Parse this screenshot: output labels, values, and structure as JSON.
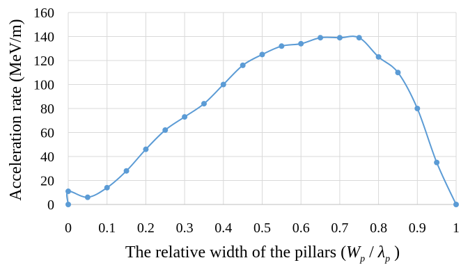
{
  "chart_data": {
    "type": "scatter",
    "ylabel": "Acceleration rate (MeV/m)",
    "xlabel": {
      "prefix": "The relative width of the pillars (",
      "w": "W",
      "w_sub": "p",
      "slash": " / ",
      "lambda": "λ",
      "lambda_sub": "p",
      "suffix": " )"
    },
    "xlim": [
      0,
      1
    ],
    "ylim": [
      0,
      160
    ],
    "xticks": [
      0,
      0.1,
      0.2,
      0.3,
      0.4,
      0.5,
      0.6,
      0.7,
      0.8,
      0.9,
      1
    ],
    "xtick_labels": [
      "0",
      "0.1",
      "0.2",
      "0.3",
      "0.4",
      "0.5",
      "0.6",
      "0.7",
      "0.8",
      "0.9",
      "1"
    ],
    "yticks": [
      0,
      20,
      40,
      60,
      80,
      100,
      120,
      140,
      160
    ],
    "ytick_labels": [
      "0",
      "20",
      "40",
      "60",
      "80",
      "100",
      "120",
      "140",
      "160"
    ],
    "grid": true,
    "smooth": true,
    "series": [
      {
        "color": "#5b9bd5",
        "x": [
          0,
          0,
          0.05,
          0.1,
          0.15,
          0.2,
          0.25,
          0.3,
          0.35,
          0.4,
          0.45,
          0.5,
          0.55,
          0.6,
          0.65,
          0.7,
          0.75,
          0.8,
          0.85,
          0.9,
          0.95,
          1
        ],
        "y": [
          0,
          11,
          6,
          14,
          28,
          46,
          62,
          73,
          84,
          100,
          116,
          125,
          132,
          134,
          139,
          139,
          139,
          123,
          110,
          80,
          35,
          0
        ]
      }
    ]
  }
}
